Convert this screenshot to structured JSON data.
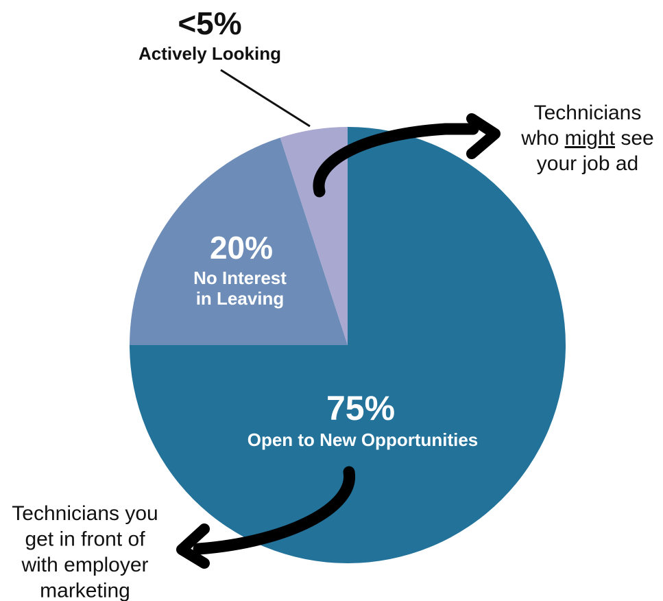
{
  "chart_data": {
    "type": "pie",
    "slices": [
      {
        "label": "Open to New Opportunities",
        "value": 75,
        "value_label": "75%",
        "color": "#22729a"
      },
      {
        "label": "No Interest in Leaving",
        "value": 20,
        "value_label": "20%",
        "color": "#6d8db8"
      },
      {
        "label": "Actively Looking",
        "value": 5,
        "value_label": "<5%",
        "color": "#a8a8d0"
      }
    ],
    "slice_text": {
      "open": {
        "pct": "75%",
        "line1": "Open to New Opportunities"
      },
      "no_interest": {
        "pct": "20%",
        "line1": "No Interest",
        "line2": "in Leaving"
      },
      "active": {
        "pct": "<5%",
        "line1": "Actively Looking"
      }
    },
    "annotations": {
      "might_see": {
        "line1": "Technicians",
        "line2_pre": "who ",
        "line2_underlined": "might",
        "line2_post": " see",
        "line3": "your job ad"
      },
      "employer_marketing": {
        "lines": [
          "Technicians you",
          "get in front of",
          "with employer",
          "marketing"
        ]
      }
    },
    "colors": {
      "text_dark": "#111111",
      "text_light": "#ffffff",
      "arrow": "#000000"
    }
  }
}
